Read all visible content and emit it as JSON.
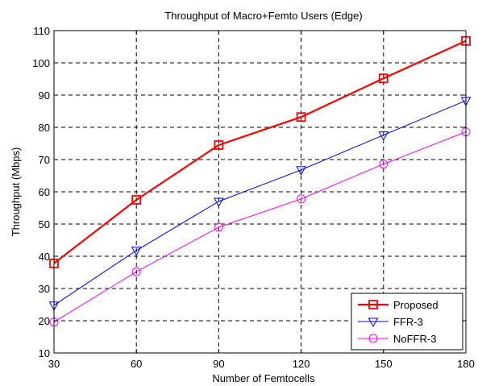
{
  "chart_data": {
    "type": "line",
    "title": "Throughput of Macro+Femto Users (Edge)",
    "xlabel": "Number of Femtocells",
    "ylabel": "Throughput (Mbps)",
    "x": [
      30,
      60,
      90,
      120,
      150,
      180
    ],
    "xlim": [
      30,
      180
    ],
    "ylim": [
      10,
      110
    ],
    "xticks": [
      "30",
      "60",
      "90",
      "120",
      "150",
      "180"
    ],
    "yticks": [
      "10",
      "20",
      "30",
      "40",
      "50",
      "60",
      "70",
      "80",
      "90",
      "100",
      "110"
    ],
    "grid": true,
    "legend_position": "bottom-right",
    "series": [
      {
        "name": "Proposed",
        "values": [
          37.8,
          57.5,
          74.5,
          83.2,
          95.2,
          106.8
        ],
        "color": "#ff0000",
        "marker": "square",
        "bold": true
      },
      {
        "name": "FFR-3",
        "values": [
          24.8,
          41.8,
          57.0,
          66.8,
          77.6,
          88.3
        ],
        "color": "#0000ff",
        "marker": "triangle-down",
        "bold": false
      },
      {
        "name": "NoFFR-3",
        "values": [
          19.6,
          35.2,
          49.0,
          57.8,
          68.6,
          78.6
        ],
        "color": "#ff00ff",
        "marker": "circle",
        "bold": false
      }
    ]
  }
}
